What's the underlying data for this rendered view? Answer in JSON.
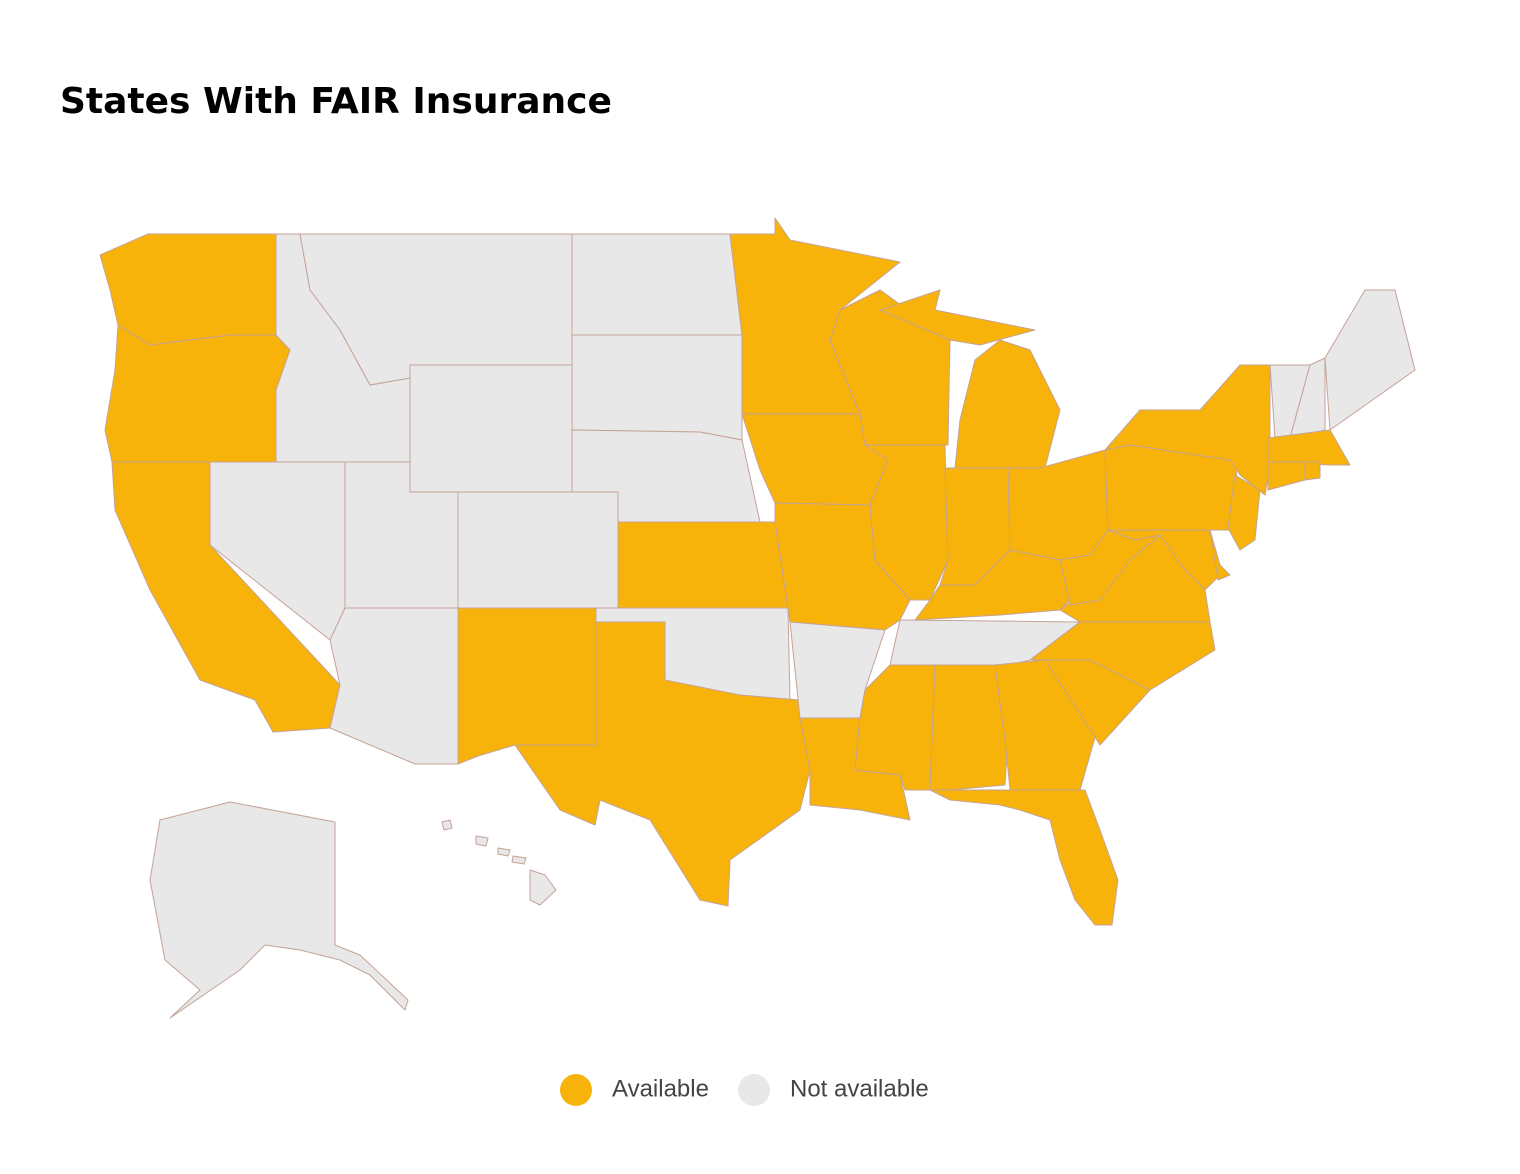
{
  "title": "States With FAIR Insurance",
  "legend": [
    {
      "label": "Available",
      "color": "#f8b30a"
    },
    {
      "label": "Not available",
      "color": "#e8e8e8"
    }
  ]
}
